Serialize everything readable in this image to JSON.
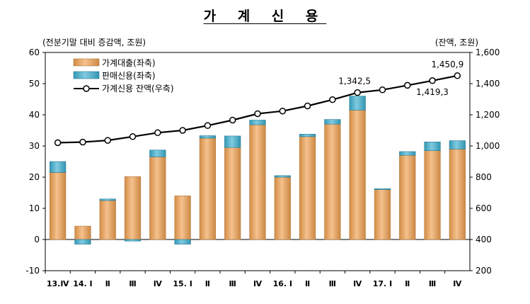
{
  "chart_data": {
    "type": "bar",
    "title": "가 계 신 용",
    "left_unit_label": "(전분기말 대비 증감액, 조원)",
    "right_unit_label": "(잔액, 조원)",
    "categories": [
      "13.Ⅳ",
      "14. Ⅰ",
      "Ⅱ",
      "Ⅲ",
      "Ⅳ",
      "15. Ⅰ",
      "Ⅱ",
      "Ⅲ",
      "Ⅳ",
      "16. Ⅰ",
      "Ⅱ",
      "Ⅲ",
      "Ⅳ",
      "17. Ⅰ",
      "Ⅱ",
      "Ⅲ",
      "Ⅳ"
    ],
    "y_left": {
      "min": -10,
      "max": 60,
      "ticks": [
        "-10",
        "0",
        "10",
        "20",
        "30",
        "40",
        "50",
        "60"
      ]
    },
    "y_right": {
      "min": 200,
      "max": 1600,
      "ticks": [
        "200",
        "400",
        "600",
        "800",
        "1,000",
        "1,200",
        "1,400",
        "1,600"
      ]
    },
    "series": [
      {
        "name": "가계대출(좌축)",
        "type": "bar",
        "axis": "left",
        "color": "#F0A050",
        "values": [
          21.5,
          4.3,
          12.5,
          20.2,
          26.5,
          14.0,
          32.5,
          29.5,
          36.8,
          20.0,
          33.0,
          37.0,
          41.5,
          16.0,
          27.0,
          28.5,
          29.0
        ]
      },
      {
        "name": "판매신용(좌축)",
        "type": "bar",
        "axis": "left",
        "color": "#3BAFD0",
        "values": [
          3.5,
          -1.5,
          0.5,
          -0.5,
          2.2,
          -1.5,
          0.8,
          3.7,
          1.5,
          0.5,
          0.8,
          1.5,
          4.5,
          0.3,
          1.2,
          2.8,
          2.7
        ]
      },
      {
        "name": "가계신용 잔액(우축)",
        "type": "line",
        "axis": "right",
        "color": "#000000",
        "values": [
          1021,
          1025,
          1036,
          1060,
          1085,
          1100,
          1131,
          1166,
          1207,
          1224,
          1257,
          1297,
          1342.5,
          1360,
          1389,
          1419.3,
          1450.9
        ]
      }
    ],
    "data_labels": [
      {
        "index": 12,
        "text": "1,342,5"
      },
      {
        "index": 15,
        "text": "1,419,3"
      },
      {
        "index": 16,
        "text": "1,450,9"
      }
    ],
    "legend_position": "top-left"
  }
}
